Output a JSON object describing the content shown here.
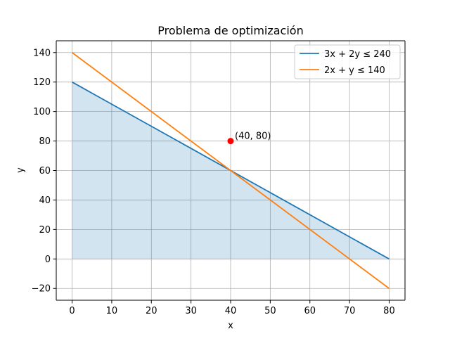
{
  "chart_data": {
    "type": "line",
    "title": "Problema de optimización",
    "xlabel": "x",
    "ylabel": "y",
    "xlim": [
      -4,
      84
    ],
    "ylim": [
      -28,
      148
    ],
    "xticks": [
      0,
      10,
      20,
      30,
      40,
      50,
      60,
      70,
      80
    ],
    "yticks": [
      -20,
      0,
      20,
      40,
      60,
      80,
      100,
      120,
      140
    ],
    "ytick_labels": [
      "−20",
      "0",
      "20",
      "40",
      "60",
      "80",
      "100",
      "120",
      "140"
    ],
    "grid": true,
    "legend_position": "top-right",
    "series": [
      {
        "name": "3x + 2y ≤ 240",
        "color": "#1f77b4",
        "x": [
          0,
          80
        ],
        "y": [
          120,
          0
        ]
      },
      {
        "name": "2x + y ≤ 140",
        "color": "#ff7f0e",
        "x": [
          0,
          80
        ],
        "y": [
          140,
          -20
        ]
      }
    ],
    "fill_region": {
      "color": "#1f77b4",
      "opacity": 0.2,
      "x": [
        0,
        80
      ],
      "upper": [
        120,
        0
      ],
      "lower": [
        0,
        0
      ]
    },
    "points": [
      {
        "x": 40,
        "y": 80,
        "color": "#ff0000",
        "label": "(40, 80)"
      }
    ]
  }
}
